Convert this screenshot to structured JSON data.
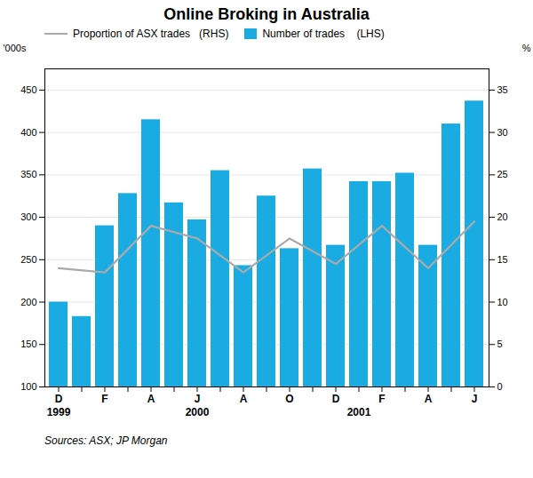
{
  "chart_data": {
    "type": "bar",
    "title": "Online Broking in Australia",
    "categories": [
      "D",
      null,
      "F",
      null,
      "A",
      null,
      "J",
      null,
      "A",
      null,
      "O",
      null,
      "D",
      null,
      "F",
      null,
      "A",
      null,
      "J"
    ],
    "series": [
      {
        "name": "Proportion of ASX trades   (RHS)",
        "type": "line",
        "color": "#aaaaaa",
        "axis": "y2",
        "values": [
          14.0,
          null,
          13.5,
          null,
          19.0,
          null,
          17.5,
          null,
          13.5,
          null,
          17.5,
          null,
          14.5,
          null,
          19.0,
          null,
          14.0,
          null,
          19.5
        ]
      },
      {
        "name": "Number of trades    (LHS)",
        "type": "bar",
        "color": "#1aabe2",
        "values": [
          200,
          183,
          290,
          328,
          415,
          317,
          297,
          355,
          243,
          325,
          263,
          357,
          267,
          342,
          342,
          352,
          267,
          410,
          437
        ]
      }
    ],
    "ylabel": "'000s",
    "y2label": "%",
    "ylim": [
      100,
      475
    ],
    "yticks": [
      100,
      150,
      200,
      250,
      300,
      350,
      400,
      450
    ],
    "y2lim": [
      0,
      37.5
    ],
    "y2ticks": [
      0,
      5,
      10,
      15,
      20,
      25,
      30,
      35
    ],
    "grid": true,
    "legend": "top-left",
    "annotations": [
      {
        "text": "1999",
        "x": 0
      },
      {
        "text": "2000",
        "x": 6
      },
      {
        "text": "2001",
        "x": 13
      }
    ],
    "source": "Sources: ASX; JP Morgan"
  }
}
